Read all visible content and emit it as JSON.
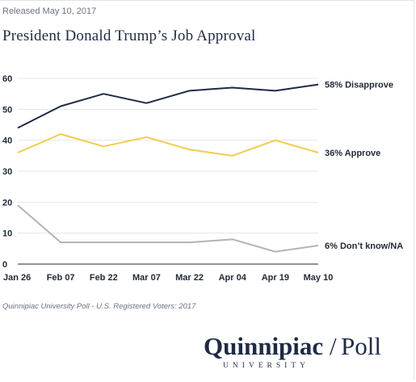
{
  "release": "Released May 10, 2017",
  "source": "Quinnipiac University Poll - U.S. Registered Voters: 2017",
  "logo": {
    "name": "Quinnipiac",
    "divider": "/",
    "poll": "Poll",
    "sub": "UNIVERSITY"
  },
  "colors": {
    "disapprove": "#1f2a44",
    "approve": "#f2cc4d",
    "dontknow": "#b3b3b3",
    "grid": "#e6e6e6",
    "axis": "#1f2937"
  },
  "chart_data": {
    "type": "line",
    "title": "President Donald Trump’s Job Approval",
    "xlabel": "",
    "ylabel": "",
    "categories": [
      "Jan 26",
      "Feb 07",
      "Feb 22",
      "Mar 07",
      "Mar 22",
      "Apr 04",
      "Apr 19",
      "May 10"
    ],
    "ylim": [
      0,
      60
    ],
    "yticks": [
      0,
      10,
      20,
      30,
      40,
      50,
      60
    ],
    "grid": true,
    "series": [
      {
        "key": "disapprove",
        "label": "58% Disapprove",
        "values": [
          44,
          51,
          55,
          52,
          56,
          57,
          56,
          58
        ]
      },
      {
        "key": "approve",
        "label": "36% Approve",
        "values": [
          36,
          42,
          38,
          41,
          37,
          35,
          40,
          36
        ]
      },
      {
        "key": "dontknow",
        "label": "6% Don’t know/NA",
        "values": [
          19,
          7,
          7,
          7,
          7,
          8,
          4,
          6
        ]
      }
    ]
  }
}
